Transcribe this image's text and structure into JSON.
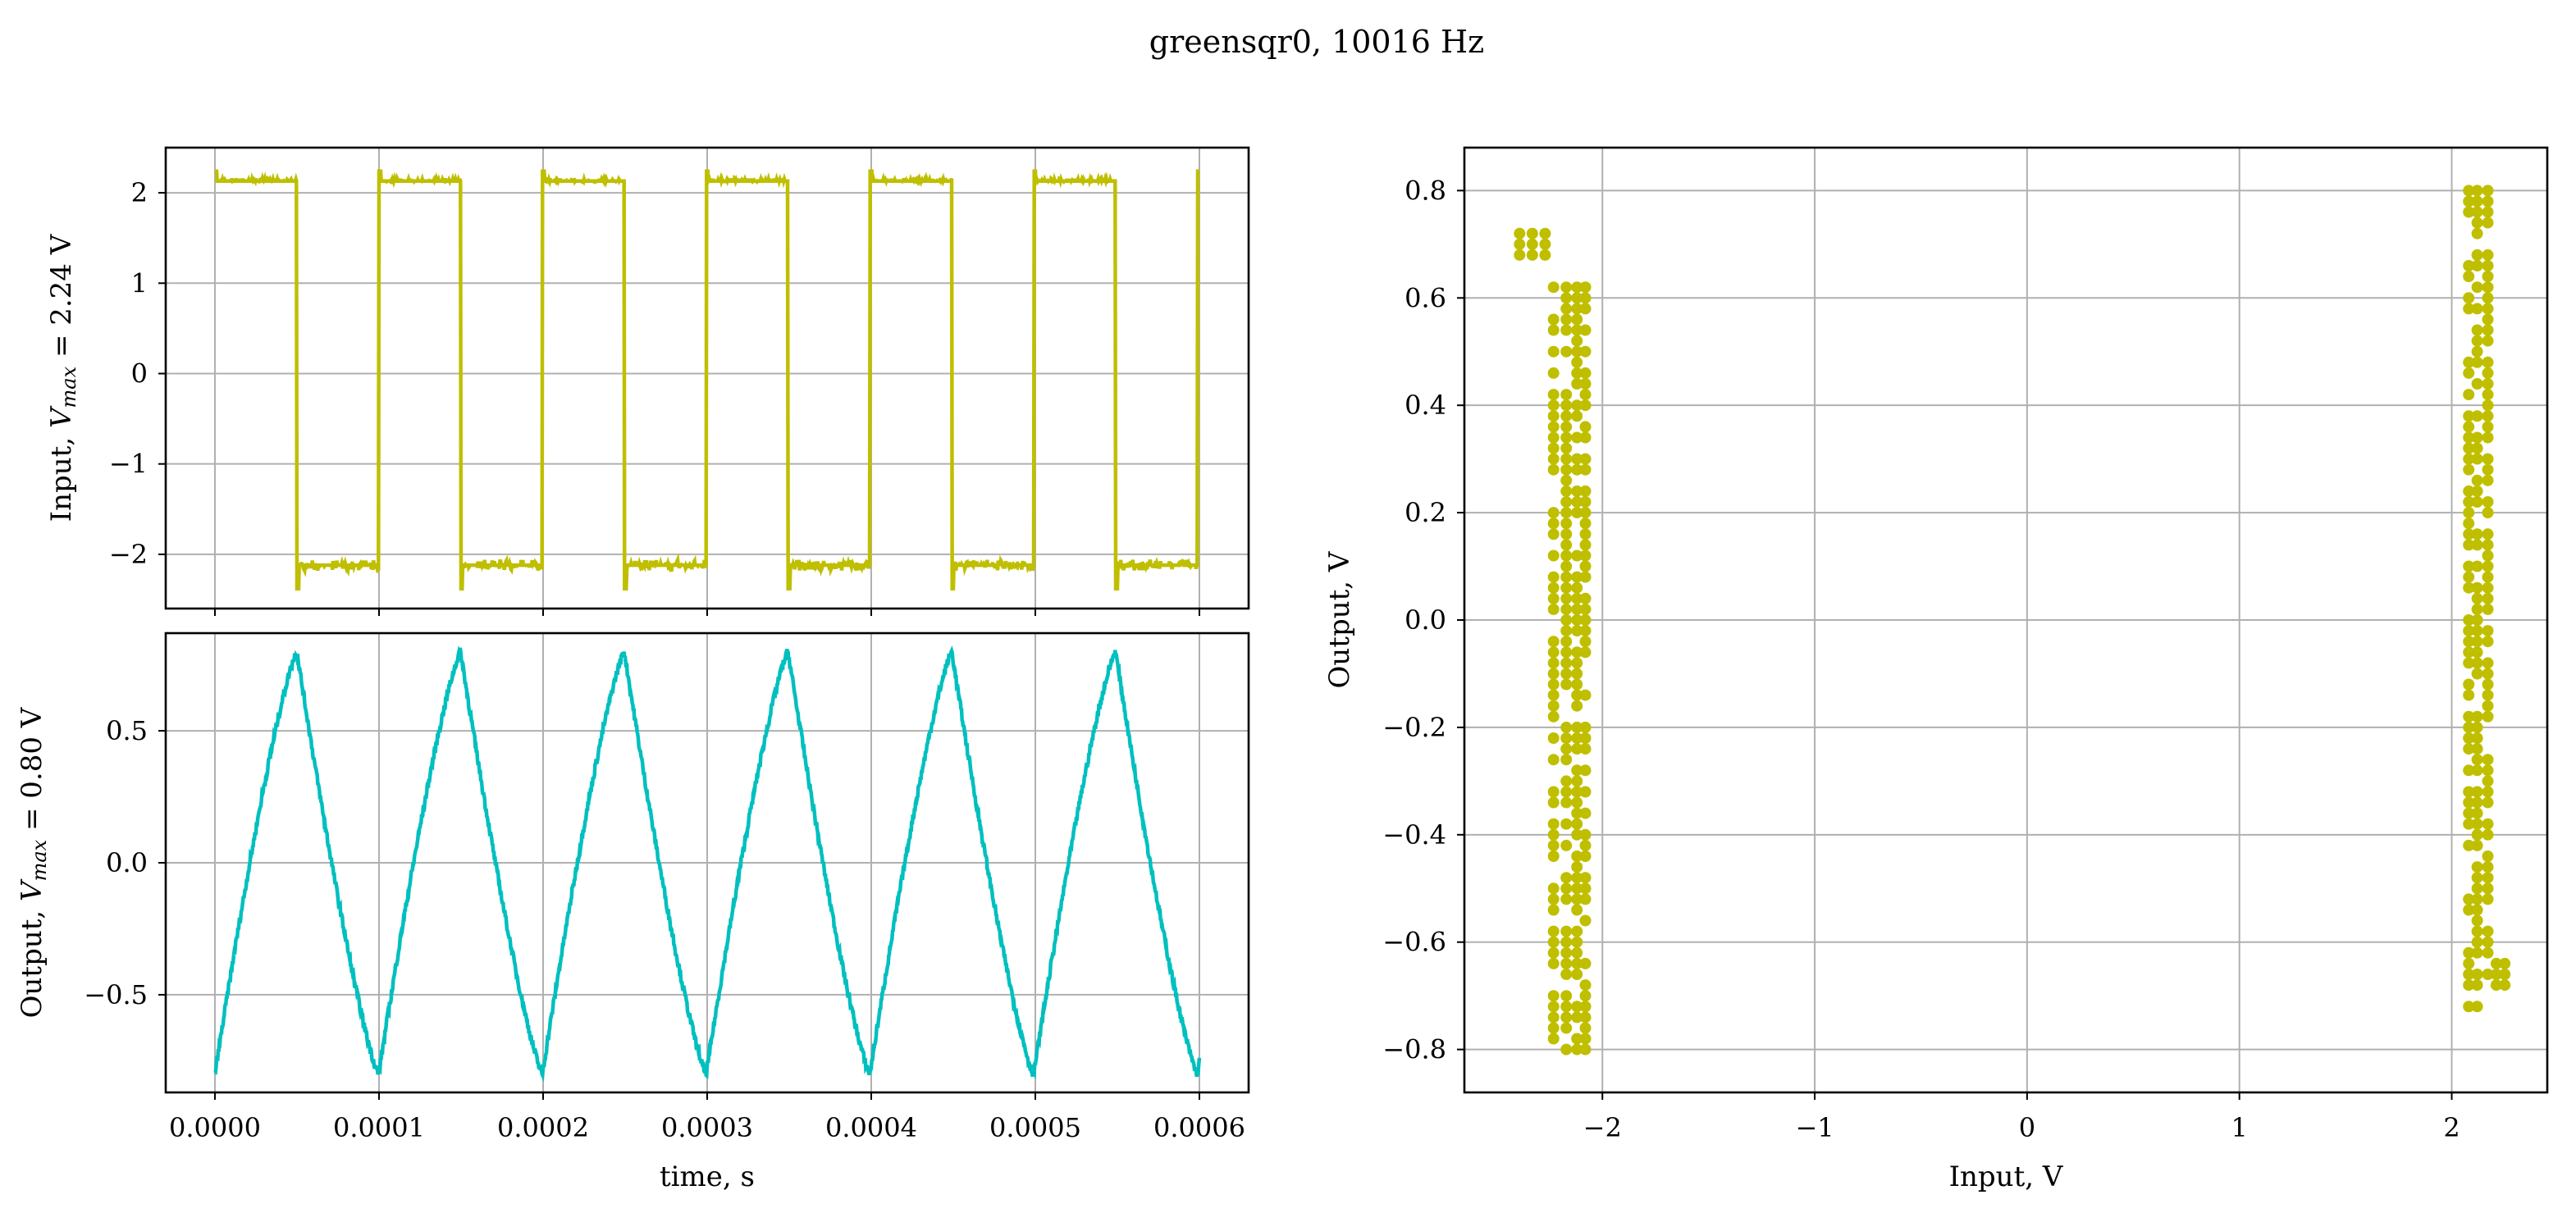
{
  "figure": {
    "title": "greensqr0, 10016 Hz"
  },
  "colors": {
    "input": "#bfbf00",
    "output": "#00bfbf",
    "grid": "#b0b0b0",
    "axes": "#000000"
  },
  "chart_data": [
    {
      "type": "line",
      "ylabel": "Input, V_max = 2.24 V",
      "ylabel_parts": [
        "Input, ",
        "V",
        "max",
        " = 2.24 V"
      ],
      "xlabel": "",
      "xlim": [
        -3e-05,
        0.00063
      ],
      "ylim": [
        -2.6,
        2.5
      ],
      "yticks": [
        2,
        1,
        0,
        -1,
        -2
      ],
      "yticklabels": [
        "2",
        "1",
        "0",
        "−1",
        "−2"
      ],
      "xticks": [
        0,
        0.0001,
        0.0002,
        0.0003,
        0.0004,
        0.0005,
        0.0006
      ],
      "grid": true,
      "series": [
        {
          "color": "#bfbf00",
          "description_values": {
            "period_s": 9.98e-05,
            "high_V": 2.13,
            "low_V": -2.12,
            "peak_V": 2.24,
            "trough_V": -2.38,
            "x_start": 0,
            "x_end": 0.0006
          }
        }
      ]
    },
    {
      "type": "line",
      "ylabel": "Output, V_max = 0.80 V",
      "ylabel_parts": [
        "Output, ",
        "V",
        "max",
        " = 0.80 V"
      ],
      "xlabel": "time, s",
      "xlim": [
        -3e-05,
        0.00063
      ],
      "ylim": [
        -0.87,
        0.87
      ],
      "yticks": [
        0.5,
        0.0,
        -0.5
      ],
      "yticklabels": [
        "0.5",
        "0.0",
        "−0.5"
      ],
      "xticks": [
        0,
        0.0001,
        0.0002,
        0.0003,
        0.0004,
        0.0005,
        0.0006
      ],
      "xticklabels": [
        "0.0000",
        "0.0001",
        "0.0002",
        "0.0003",
        "0.0004",
        "0.0005",
        "0.0006"
      ],
      "grid": true,
      "series": [
        {
          "color": "#00bfbf",
          "description_values": {
            "period_s": 9.98e-05,
            "max_V": 0.8,
            "min_V": -0.8,
            "peak_time_first_s": 5e-05
          }
        }
      ]
    },
    {
      "type": "scatter",
      "xlabel": "Input, V",
      "ylabel": "Output, V",
      "xlim": [
        -2.65,
        2.45
      ],
      "ylim": [
        -0.88,
        0.88
      ],
      "xticks": [
        -2,
        -1,
        0,
        1,
        2
      ],
      "xticklabels": [
        "−2",
        "−1",
        "0",
        "1",
        "2"
      ],
      "yticks": [
        0.8,
        0.6,
        0.4,
        0.2,
        0.0,
        -0.2,
        -0.4,
        -0.6,
        -0.8
      ],
      "yticklabels": [
        "0.8",
        "0.6",
        "0.4",
        "0.2",
        "0.0",
        "−0.2",
        "−0.4",
        "−0.6",
        "−0.8"
      ],
      "grid": true,
      "series": [
        {
          "color": "#bfbf00",
          "clusters": [
            {
              "x": [
                -2.23,
                -2.17,
                -2.12,
                -2.08
              ],
              "y_min": -0.8,
              "y_max": 0.62
            },
            {
              "x": [
                -2.39,
                -2.33,
                -2.27
              ],
              "y_min": 0.68,
              "y_max": 0.72
            },
            {
              "x": [
                2.08,
                2.12,
                2.17
              ],
              "y_min": -0.72,
              "y_max": 0.8
            },
            {
              "x": [
                2.21,
                2.25
              ],
              "y_min": -0.68,
              "y_max": -0.63
            }
          ]
        }
      ]
    }
  ]
}
